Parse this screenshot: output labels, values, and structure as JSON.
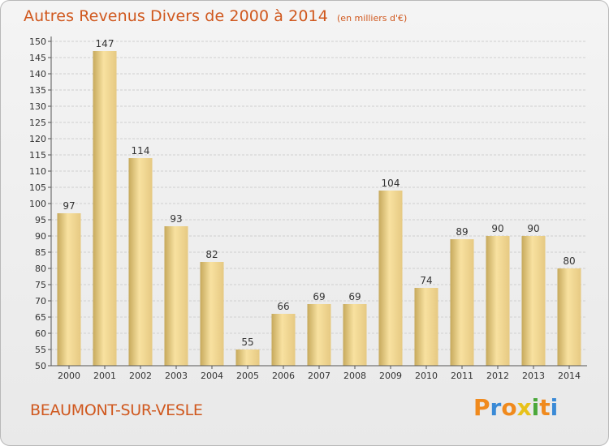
{
  "title": "Autres Revenus Divers de 2000 à 2014",
  "unit": "(en milliers d'€)",
  "town": "BEAUMONT-SUR-VESLE",
  "logo": {
    "text": "Proxiti",
    "letters": [
      "P",
      "r",
      "o",
      "x",
      "i",
      "t",
      "i"
    ],
    "colors": [
      "#f08a1d",
      "#3a8ad6",
      "#f08a1d",
      "#e8c21a",
      "#4aa83a",
      "#f08a1d",
      "#3a8ad6"
    ]
  },
  "colors": {
    "accent": "#d0581e",
    "bar_light": "#f8e1a0",
    "bar_dark": "#c6a95c",
    "grid": "#cfcfcf"
  },
  "chart_data": {
    "type": "bar",
    "categories": [
      "2000",
      "2001",
      "2002",
      "2003",
      "2004",
      "2005",
      "2006",
      "2007",
      "2008",
      "2009",
      "2010",
      "2011",
      "2012",
      "2013",
      "2014"
    ],
    "values": [
      97,
      147,
      114,
      93,
      82,
      55,
      66,
      69,
      69,
      104,
      74,
      89,
      90,
      90,
      80
    ],
    "ylim": [
      50,
      150
    ],
    "yticks": [
      50,
      55,
      60,
      65,
      70,
      75,
      80,
      85,
      90,
      95,
      100,
      105,
      110,
      115,
      120,
      125,
      130,
      135,
      140,
      145,
      150
    ],
    "grid": true,
    "data_labels": true
  }
}
